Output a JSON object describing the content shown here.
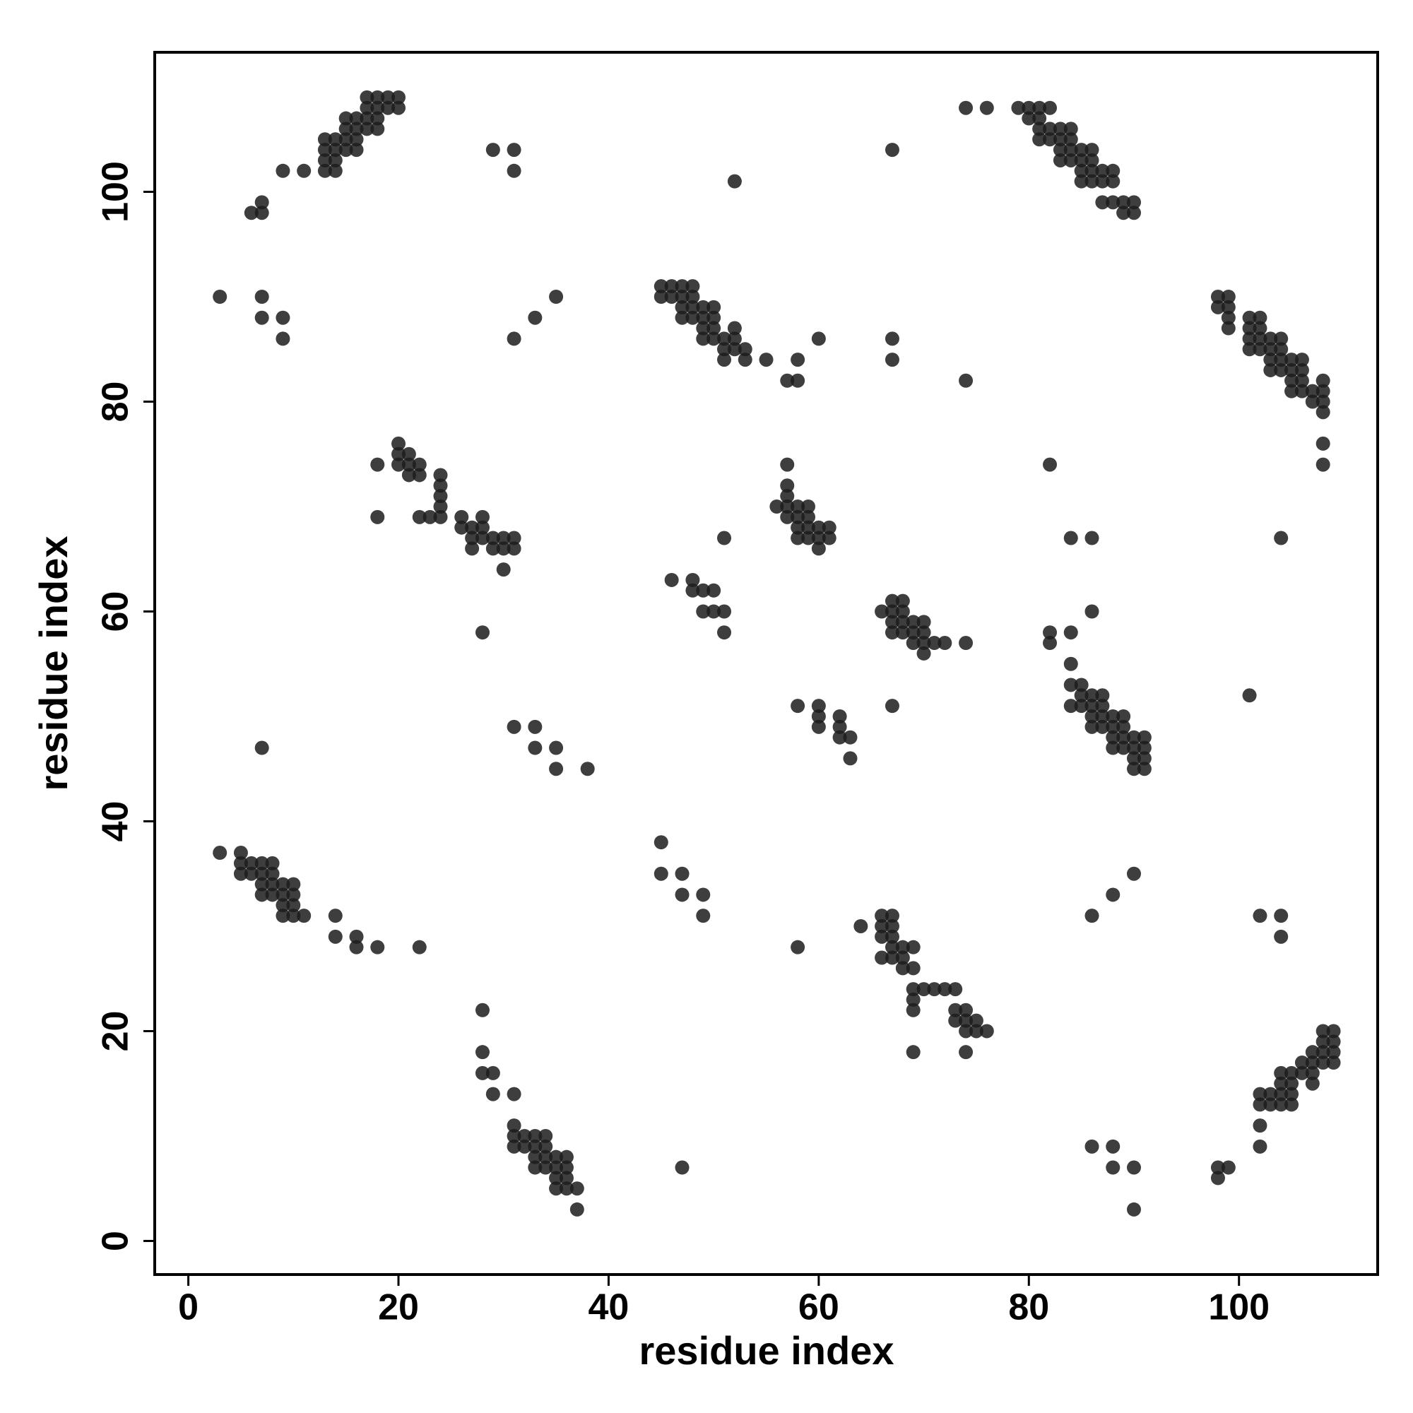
{
  "chart_data": {
    "type": "scatter",
    "xlabel": "residue index",
    "ylabel": "residue index",
    "xlim": [
      -3.2,
      113.2
    ],
    "ylim": [
      -3.2,
      113.3
    ],
    "xticks": [
      0,
      20,
      40,
      60,
      80,
      100
    ],
    "yticks": [
      0,
      20,
      40,
      60,
      80,
      100
    ],
    "grid": false,
    "color": "#1c1c1c",
    "x": [
      3,
      5,
      5,
      5,
      6,
      6,
      7,
      7,
      7,
      7,
      8,
      8,
      8,
      8,
      9,
      9,
      9,
      9,
      10,
      10,
      10,
      10,
      11,
      14,
      14,
      16,
      16,
      18,
      22,
      28,
      28,
      28,
      29,
      29,
      31,
      31,
      31,
      31,
      32,
      32,
      33,
      33,
      33,
      33,
      34,
      34,
      34,
      34,
      35,
      35,
      35,
      35,
      36,
      36,
      36,
      36,
      37,
      37,
      7,
      6,
      7,
      9,
      11,
      13,
      13,
      13,
      13,
      14,
      14,
      14,
      14,
      15,
      15,
      15,
      15,
      16,
      16,
      16,
      16,
      17,
      17,
      17,
      17,
      18,
      18,
      18,
      18,
      19,
      19,
      20,
      20,
      3,
      7,
      7,
      9,
      9,
      29,
      31,
      31,
      52,
      67,
      31,
      33,
      35,
      45,
      45,
      46,
      46,
      47,
      47,
      47,
      47,
      48,
      48,
      48,
      48,
      49,
      49,
      49,
      49,
      50,
      50,
      50,
      50,
      51,
      51,
      51,
      52,
      52,
      52,
      53,
      53,
      55,
      57,
      58,
      58,
      60,
      67,
      67,
      74,
      74,
      76,
      79,
      80,
      80,
      81,
      81,
      81,
      81,
      82,
      82,
      82,
      83,
      83,
      83,
      83,
      84,
      84,
      84,
      84,
      85,
      85,
      85,
      85,
      86,
      86,
      86,
      86,
      87,
      87,
      87,
      88,
      88,
      88,
      89,
      89,
      90,
      90,
      98,
      98,
      99,
      99,
      99,
      99,
      101,
      101,
      101,
      101,
      102,
      102,
      102,
      102,
      103,
      103,
      103,
      103,
      104,
      104,
      104,
      104,
      105,
      105,
      105,
      105,
      106,
      106,
      106,
      106,
      107,
      107,
      108,
      108,
      108,
      108,
      108,
      108,
      18,
      18,
      20,
      20,
      20,
      21,
      21,
      21,
      22,
      22,
      22,
      23,
      24,
      24,
      24,
      24,
      24,
      26,
      26,
      27,
      27,
      27,
      28,
      28,
      28,
      29,
      29,
      30,
      30,
      30,
      31,
      31,
      28,
      56,
      57,
      57,
      57,
      57,
      57,
      58,
      58,
      58,
      58,
      59,
      59,
      59,
      59,
      60,
      60,
      60,
      61,
      61,
      51,
      46,
      48,
      48,
      49,
      49,
      50,
      50,
      51,
      51,
      66,
      67,
      67,
      67,
      67,
      68,
      68,
      68,
      68,
      69,
      69,
      69,
      70,
      70,
      70,
      70,
      71,
      72,
      74,
      67,
      82,
      84,
      86,
      86,
      82,
      82,
      84,
      104,
      101,
      84,
      84,
      84,
      85,
      85,
      85,
      86,
      86,
      86,
      86,
      87,
      87,
      87,
      87,
      88,
      88,
      88,
      88,
      89,
      89,
      89,
      89,
      90,
      90,
      90,
      90,
      91,
      91,
      91,
      91,
      58,
      60,
      60,
      60,
      62,
      62,
      62,
      63,
      63,
      31,
      33,
      33,
      35,
      35,
      38,
      7,
      45,
      45,
      47,
      47,
      49,
      49,
      58,
      64,
      66,
      66,
      66,
      66,
      67,
      67,
      67,
      67,
      67,
      68,
      68,
      68,
      69,
      69,
      69,
      69,
      69,
      70,
      71,
      72,
      73,
      73,
      73,
      74,
      74,
      74,
      75,
      75,
      76,
      74,
      69,
      86,
      88,
      90,
      102,
      104,
      104,
      102,
      102,
      102,
      102,
      103,
      103,
      104,
      104,
      104,
      104,
      105,
      105,
      105,
      105,
      106,
      106,
      107,
      107,
      107,
      107,
      108,
      108,
      108,
      108,
      109,
      109,
      109,
      109,
      98,
      98,
      99,
      86,
      88,
      88,
      90,
      90,
      47
    ],
    "values": [
      37,
      37,
      36,
      35,
      36,
      35,
      36,
      35,
      34,
      33,
      36,
      35,
      34,
      33,
      34,
      33,
      32,
      31,
      34,
      33,
      32,
      31,
      31,
      31,
      29,
      29,
      28,
      28,
      28,
      22,
      18,
      16,
      16,
      14,
      14,
      11,
      10,
      9,
      10,
      9,
      10,
      9,
      8,
      7,
      10,
      9,
      8,
      7,
      8,
      7,
      6,
      5,
      8,
      7,
      6,
      5,
      5,
      3,
      98,
      98,
      99,
      102,
      102,
      102,
      103,
      104,
      105,
      102,
      103,
      104,
      105,
      104,
      105,
      106,
      107,
      104,
      105,
      106,
      107,
      106,
      107,
      108,
      109,
      106,
      107,
      108,
      109,
      108,
      109,
      108,
      109,
      90,
      90,
      88,
      88,
      86,
      104,
      104,
      102,
      101,
      104,
      86,
      88,
      90,
      91,
      90,
      91,
      90,
      91,
      90,
      89,
      88,
      91,
      90,
      89,
      88,
      89,
      88,
      87,
      86,
      89,
      88,
      87,
      86,
      86,
      85,
      84,
      87,
      86,
      85,
      85,
      84,
      84,
      82,
      82,
      84,
      86,
      86,
      84,
      82,
      108,
      108,
      108,
      108,
      107,
      108,
      107,
      106,
      105,
      108,
      106,
      105,
      106,
      105,
      104,
      103,
      106,
      105,
      104,
      103,
      104,
      103,
      102,
      101,
      104,
      103,
      102,
      101,
      102,
      101,
      99,
      102,
      101,
      99,
      99,
      98,
      99,
      98,
      90,
      89,
      90,
      89,
      88,
      87,
      88,
      87,
      86,
      85,
      88,
      87,
      86,
      85,
      86,
      85,
      84,
      83,
      86,
      85,
      84,
      83,
      84,
      83,
      82,
      81,
      84,
      83,
      82,
      81,
      81,
      80,
      82,
      81,
      80,
      79,
      76,
      74,
      74,
      69,
      76,
      75,
      74,
      75,
      74,
      73,
      74,
      73,
      69,
      69,
      73,
      72,
      71,
      70,
      69,
      69,
      68,
      68,
      67,
      66,
      69,
      68,
      67,
      67,
      66,
      67,
      66,
      64,
      67,
      66,
      58,
      70,
      74,
      72,
      71,
      70,
      69,
      70,
      69,
      68,
      67,
      70,
      69,
      68,
      67,
      68,
      67,
      66,
      68,
      67,
      67,
      63,
      63,
      62,
      62,
      60,
      62,
      60,
      60,
      58,
      60,
      61,
      60,
      59,
      58,
      61,
      60,
      59,
      58,
      59,
      58,
      57,
      59,
      58,
      57,
      56,
      57,
      57,
      57,
      51,
      74,
      67,
      67,
      60,
      58,
      57,
      58,
      67,
      52,
      55,
      53,
      51,
      53,
      52,
      51,
      52,
      51,
      50,
      49,
      52,
      51,
      50,
      49,
      50,
      49,
      48,
      47,
      50,
      49,
      48,
      47,
      48,
      47,
      46,
      45,
      48,
      47,
      46,
      45,
      51,
      51,
      50,
      49,
      50,
      49,
      48,
      48,
      46,
      49,
      49,
      47,
      47,
      45,
      45,
      47,
      38,
      35,
      35,
      33,
      33,
      31,
      28,
      30,
      31,
      30,
      29,
      27,
      31,
      30,
      29,
      28,
      27,
      28,
      27,
      26,
      28,
      26,
      24,
      23,
      22,
      24,
      24,
      24,
      24,
      22,
      21,
      22,
      21,
      20,
      21,
      20,
      20,
      18,
      18,
      31,
      33,
      35,
      31,
      31,
      29,
      14,
      13,
      11,
      9,
      14,
      13,
      16,
      15,
      14,
      13,
      16,
      15,
      14,
      13,
      17,
      16,
      18,
      17,
      16,
      15,
      20,
      19,
      18,
      17,
      20,
      19,
      18,
      17,
      7,
      6,
      7,
      9,
      9,
      7,
      7,
      3,
      7
    ]
  }
}
